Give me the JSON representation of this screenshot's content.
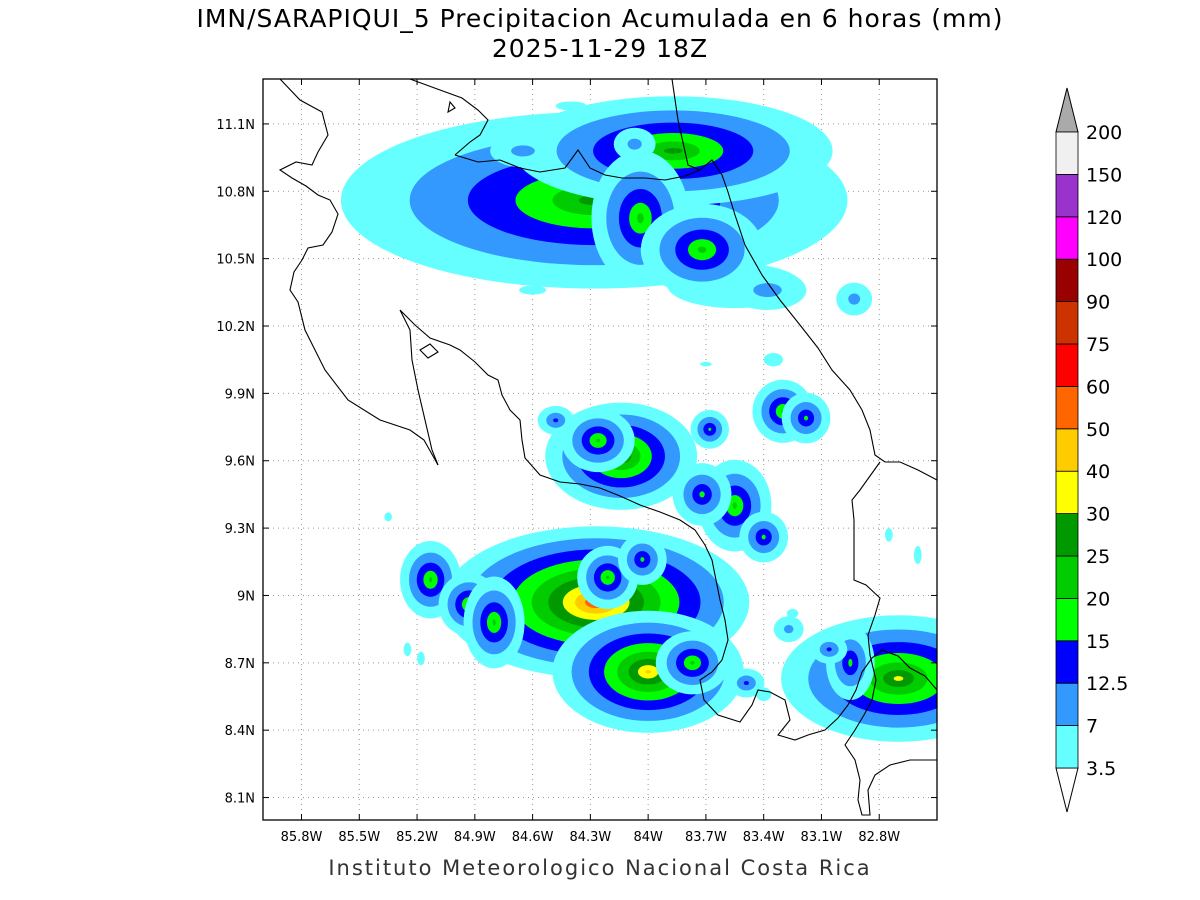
{
  "title_line1": "IMN/SARAPIQUI_5 Precipitacion Acumulada en 6 horas (mm)",
  "title_line2": "2025-11-29 18Z",
  "footer": "Instituto Meteorologico Nacional Costa Rica",
  "map": {
    "lon_range": [
      -86.0,
      -82.5
    ],
    "lat_range": [
      8.0,
      11.3
    ],
    "lon_ticks": [
      {
        "value": -85.8,
        "label": "85.8W"
      },
      {
        "value": -85.5,
        "label": "85.5W"
      },
      {
        "value": -85.2,
        "label": "85.2W"
      },
      {
        "value": -84.9,
        "label": "84.9W"
      },
      {
        "value": -84.6,
        "label": "84.6W"
      },
      {
        "value": -84.3,
        "label": "84.3W"
      },
      {
        "value": -84.0,
        "label": "84W"
      },
      {
        "value": -83.7,
        "label": "83.7W"
      },
      {
        "value": -83.4,
        "label": "83.4W"
      },
      {
        "value": -83.1,
        "label": "83.1W"
      },
      {
        "value": -82.8,
        "label": "82.8W"
      }
    ],
    "lat_ticks": [
      {
        "value": 11.1,
        "label": "11.1N"
      },
      {
        "value": 10.8,
        "label": "10.8N"
      },
      {
        "value": 10.5,
        "label": "10.5N"
      },
      {
        "value": 10.2,
        "label": "10.2N"
      },
      {
        "value": 9.9,
        "label": "9.9N"
      },
      {
        "value": 9.6,
        "label": "9.6N"
      },
      {
        "value": 9.3,
        "label": "9.3N"
      },
      {
        "value": 9.0,
        "label": "9N"
      },
      {
        "value": 8.7,
        "label": "8.7N"
      },
      {
        "value": 8.4,
        "label": "8.4N"
      },
      {
        "value": 8.1,
        "label": "8.1N"
      }
    ],
    "grid": true
  },
  "colorbar": {
    "levels": [
      {
        "label": "3.5",
        "color": "#66ffff"
      },
      {
        "label": "7",
        "color": "#3399ff"
      },
      {
        "label": "12.5",
        "color": "#0000ff"
      },
      {
        "label": "15",
        "color": "#00ff00"
      },
      {
        "label": "20",
        "color": "#00cc00"
      },
      {
        "label": "25",
        "color": "#009900"
      },
      {
        "label": "30",
        "color": "#ffff00"
      },
      {
        "label": "40",
        "color": "#ffcc00"
      },
      {
        "label": "50",
        "color": "#ff6600"
      },
      {
        "label": "60",
        "color": "#ff0000"
      },
      {
        "label": "75",
        "color": "#cc3300"
      },
      {
        "label": "90",
        "color": "#990000"
      },
      {
        "label": "100",
        "color": "#ff00ff"
      },
      {
        "label": "120",
        "color": "#9933cc"
      },
      {
        "label": "150",
        "color": "#f0f0f0"
      },
      {
        "label": "200",
        "color": "#aaaaaa"
      }
    ],
    "under_color": "#ffffff",
    "over_color": "#aaaaaa"
  },
  "precip_cells": [
    {
      "lon": -84.28,
      "lat": 10.76,
      "rx": 0.33,
      "ry": 0.09,
      "level": 5
    },
    {
      "lon": -83.87,
      "lat": 10.98,
      "rx": 0.2,
      "ry": 0.05,
      "level": 5
    },
    {
      "lon": -84.04,
      "lat": 10.68,
      "rx": 0.06,
      "ry": 0.08,
      "level": 4
    },
    {
      "lon": -83.72,
      "lat": 10.54,
      "rx": 0.08,
      "ry": 0.05,
      "level": 4
    },
    {
      "lon": -84.14,
      "lat": 9.62,
      "rx": 0.07,
      "ry": 0.04,
      "level": 6
    },
    {
      "lon": -84.27,
      "lat": 8.97,
      "rx": 0.11,
      "ry": 0.04,
      "level": 9
    },
    {
      "lon": -84.21,
      "lat": 9.08,
      "rx": 0.03,
      "ry": 0.03,
      "level": 4
    },
    {
      "lon": -84.0,
      "lat": 8.66,
      "rx": 0.08,
      "ry": 0.04,
      "level": 7
    },
    {
      "lon": -83.77,
      "lat": 8.7,
      "rx": 0.04,
      "ry": 0.03,
      "level": 4
    },
    {
      "lon": -85.13,
      "lat": 9.07,
      "rx": 0.03,
      "ry": 0.04,
      "level": 4
    },
    {
      "lon": -84.93,
      "lat": 8.96,
      "rx": 0.03,
      "ry": 0.03,
      "level": 4
    },
    {
      "lon": -84.8,
      "lat": 8.88,
      "rx": 0.03,
      "ry": 0.05,
      "level": 4
    },
    {
      "lon": -83.55,
      "lat": 9.4,
      "rx": 0.04,
      "ry": 0.05,
      "level": 4
    },
    {
      "lon": -83.72,
      "lat": 9.45,
      "rx": 0.04,
      "ry": 0.04,
      "level": 3
    },
    {
      "lon": -83.3,
      "lat": 9.82,
      "rx": 0.03,
      "ry": 0.03,
      "level": 4
    },
    {
      "lon": -83.18,
      "lat": 9.79,
      "rx": 0.03,
      "ry": 0.03,
      "level": 3
    },
    {
      "lon": -84.26,
      "lat": 9.69,
      "rx": 0.04,
      "ry": 0.03,
      "level": 4
    },
    {
      "lon": -82.7,
      "lat": 8.63,
      "rx": 0.12,
      "ry": 0.05,
      "level": 6
    },
    {
      "lon": -82.95,
      "lat": 8.7,
      "rx": 0.03,
      "ry": 0.05,
      "level": 3
    },
    {
      "lon": -83.27,
      "lat": 8.85,
      "rx": 0.04,
      "ry": 0.03,
      "level": 1
    },
    {
      "lon": -84.03,
      "lat": 9.16,
      "rx": 0.03,
      "ry": 0.03,
      "level": 3
    },
    {
      "lon": -83.38,
      "lat": 10.36,
      "rx": 0.12,
      "ry": 0.05,
      "level": 1
    },
    {
      "lon": -82.93,
      "lat": 10.32,
      "rx": 0.05,
      "ry": 0.04,
      "level": 1
    },
    {
      "lon": -84.07,
      "lat": 11.01,
      "rx": 0.06,
      "ry": 0.04,
      "level": 1
    },
    {
      "lon": -84.65,
      "lat": 10.98,
      "rx": 0.1,
      "ry": 0.04,
      "level": 1
    },
    {
      "lon": -84.48,
      "lat": 9.78,
      "rx": 0.03,
      "ry": 0.02,
      "level": 2
    },
    {
      "lon": -83.06,
      "lat": 8.76,
      "rx": 0.03,
      "ry": 0.02,
      "level": 2
    },
    {
      "lon": -83.49,
      "lat": 8.61,
      "rx": 0.03,
      "ry": 0.02,
      "level": 2
    },
    {
      "lon": -83.4,
      "lat": 9.26,
      "rx": 0.03,
      "ry": 0.03,
      "level": 3
    },
    {
      "lon": -83.68,
      "lat": 9.74,
      "rx": 0.02,
      "ry": 0.02,
      "level": 3
    }
  ],
  "light_patches": [
    {
      "lon": -83.55,
      "lat": 10.38,
      "rx": 0.35,
      "ry": 0.1
    },
    {
      "lon": -84.5,
      "lat": 10.62,
      "rx": 0.28,
      "ry": 0.07
    },
    {
      "lon": -83.35,
      "lat": 10.05,
      "rx": 0.05,
      "ry": 0.03
    },
    {
      "lon": -84.6,
      "lat": 10.36,
      "rx": 0.07,
      "ry": 0.02
    },
    {
      "lon": -83.2,
      "lat": 11.06,
      "rx": 0.03,
      "ry": 0.02
    },
    {
      "lon": -85.4,
      "lat": 10.86,
      "rx": 0.02,
      "ry": 0.02
    },
    {
      "lon": -83.7,
      "lat": 10.03,
      "rx": 0.03,
      "ry": 0.01
    },
    {
      "lon": -85.35,
      "lat": 9.35,
      "rx": 0.02,
      "ry": 0.02
    },
    {
      "lon": -85.25,
      "lat": 8.76,
      "rx": 0.02,
      "ry": 0.03
    },
    {
      "lon": -85.18,
      "lat": 8.72,
      "rx": 0.02,
      "ry": 0.03
    },
    {
      "lon": -83.87,
      "lat": 8.87,
      "rx": 0.02,
      "ry": 0.03
    },
    {
      "lon": -83.25,
      "lat": 8.92,
      "rx": 0.03,
      "ry": 0.02
    },
    {
      "lon": -82.6,
      "lat": 9.18,
      "rx": 0.02,
      "ry": 0.04
    },
    {
      "lon": -82.75,
      "lat": 9.27,
      "rx": 0.02,
      "ry": 0.03
    },
    {
      "lon": -83.4,
      "lat": 8.56,
      "rx": 0.04,
      "ry": 0.03
    },
    {
      "lon": -82.55,
      "lat": 8.88,
      "rx": 0.02,
      "ry": 0.02
    },
    {
      "lon": -84.4,
      "lat": 11.18,
      "rx": 0.08,
      "ry": 0.02
    },
    {
      "lon": -85.12,
      "lat": 9.22,
      "rx": 0.02,
      "ry": 0.02
    }
  ]
}
